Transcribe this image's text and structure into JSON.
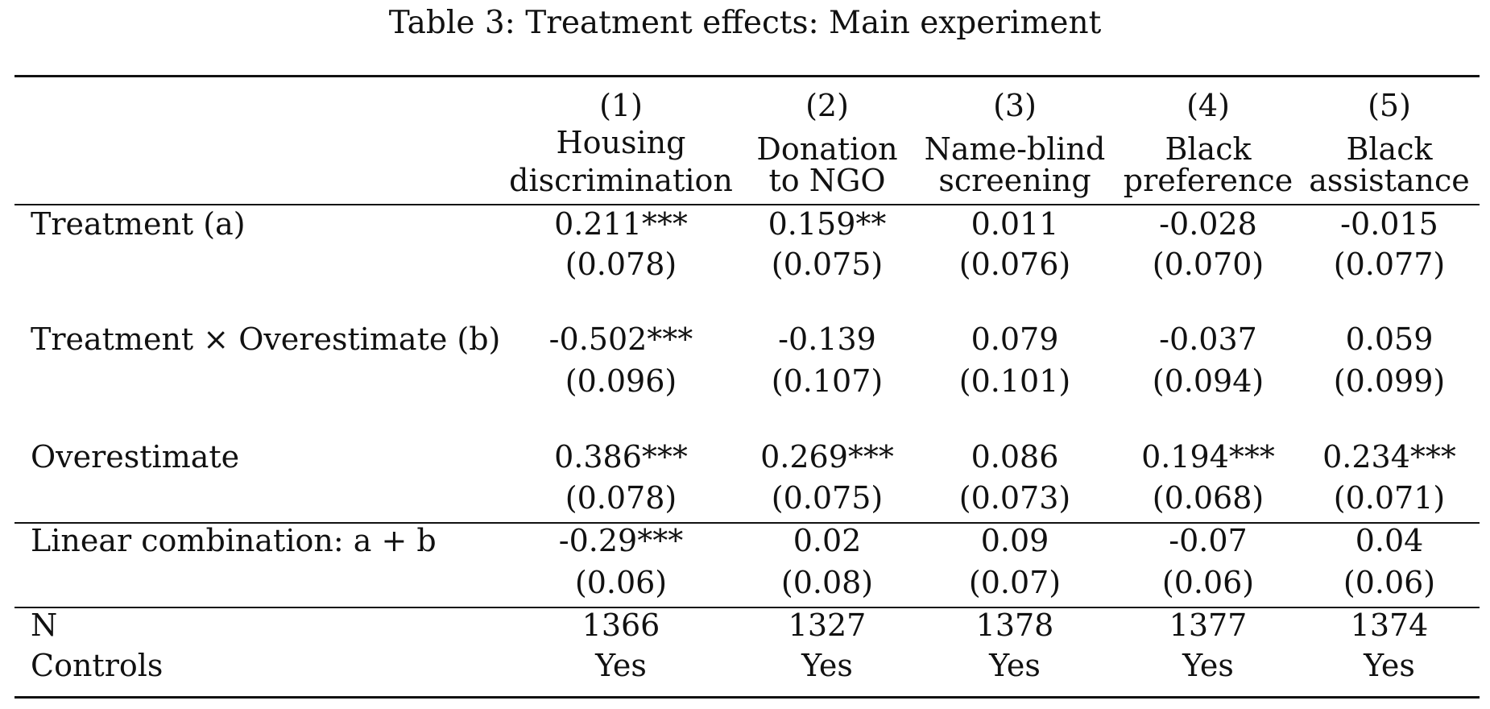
{
  "caption": "Table 3: Treatment effects: Main experiment",
  "columns": [
    {
      "number": "(1)",
      "label_lines": [
        "Housing",
        "discrimination"
      ]
    },
    {
      "number": "(2)",
      "label_lines": [
        "Donation",
        "to NGO"
      ]
    },
    {
      "number": "(3)",
      "label_lines": [
        "Name-blind",
        "screening"
      ]
    },
    {
      "number": "(4)",
      "label_lines": [
        "Black",
        "preference"
      ]
    },
    {
      "number": "(5)",
      "label_lines": [
        "Black",
        "assistance"
      ]
    }
  ],
  "rows": [
    {
      "label": "Treatment (a)",
      "estimates": [
        "0.211***",
        "0.159**",
        "0.011",
        "-0.028",
        "-0.015"
      ],
      "se": [
        "(0.078)",
        "(0.075)",
        "(0.076)",
        "(0.070)",
        "(0.077)"
      ]
    },
    {
      "label": "Treatment × Overestimate (b)",
      "estimates": [
        "-0.502***",
        "-0.139",
        "0.079",
        "-0.037",
        "0.059"
      ],
      "se": [
        "(0.096)",
        "(0.107)",
        "(0.101)",
        "(0.094)",
        "(0.099)"
      ]
    },
    {
      "label": "Overestimate",
      "estimates": [
        "0.386***",
        "0.269***",
        "0.086",
        "0.194***",
        "0.234***"
      ],
      "se": [
        "(0.078)",
        "(0.075)",
        "(0.073)",
        "(0.068)",
        "(0.071)"
      ]
    },
    {
      "label": "Linear combination: a + b",
      "estimates": [
        "-0.29***",
        "0.02",
        "0.09",
        "-0.07",
        "0.04"
      ],
      "se": [
        "(0.06)",
        "(0.08)",
        "(0.07)",
        "(0.06)",
        "(0.06)"
      ]
    }
  ],
  "footer": [
    {
      "label": "N",
      "values": [
        "1366",
        "1327",
        "1378",
        "1377",
        "1374"
      ]
    },
    {
      "label": "Controls",
      "values": [
        "Yes",
        "Yes",
        "Yes",
        "Yes",
        "Yes"
      ]
    }
  ]
}
